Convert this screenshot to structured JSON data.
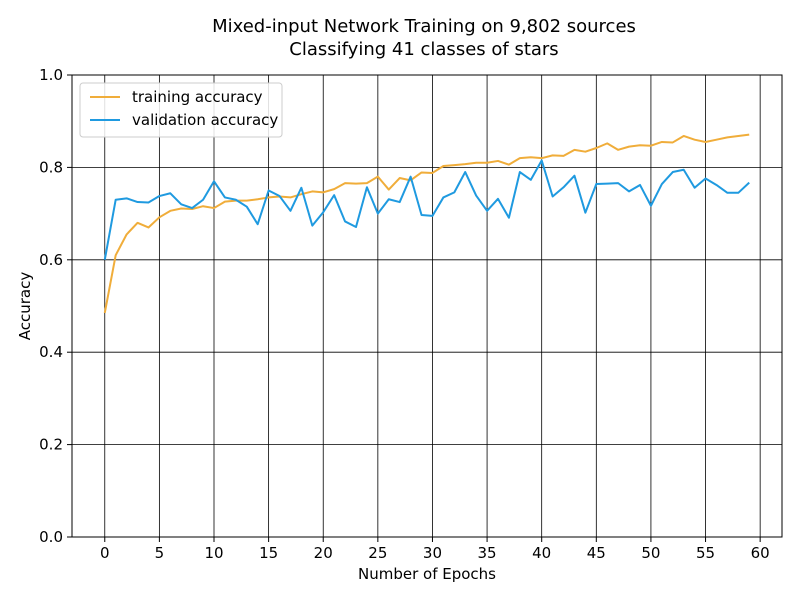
{
  "chart_data": {
    "type": "line",
    "title": "Mixed-input Network Training on 9,802 sources",
    "subtitle": "Classifying 41 classes of stars",
    "xlabel": "Number of Epochs",
    "ylabel": "Accuracy",
    "xlim": [
      -3,
      62
    ],
    "ylim": [
      0.0,
      1.0
    ],
    "xticks": [
      0,
      5,
      10,
      15,
      20,
      25,
      30,
      35,
      40,
      45,
      50,
      55,
      60
    ],
    "yticks": [
      0.0,
      0.2,
      0.4,
      0.6,
      0.8,
      1.0
    ],
    "xtick_labels": [
      "0",
      "5",
      "10",
      "15",
      "20",
      "25",
      "30",
      "35",
      "40",
      "45",
      "50",
      "55",
      "60"
    ],
    "ytick_labels": [
      "0.0",
      "0.2",
      "0.4",
      "0.6",
      "0.8",
      "1.0"
    ],
    "grid": true,
    "legend_position": "top-left",
    "x": [
      0,
      1,
      2,
      3,
      4,
      5,
      6,
      7,
      8,
      9,
      10,
      11,
      12,
      13,
      14,
      15,
      16,
      17,
      18,
      19,
      20,
      21,
      22,
      23,
      24,
      25,
      26,
      27,
      28,
      29,
      30,
      31,
      32,
      33,
      34,
      35,
      36,
      37,
      38,
      39,
      40,
      41,
      42,
      43,
      44,
      45,
      46,
      47,
      48,
      49,
      50,
      51,
      52,
      53,
      54,
      55,
      56,
      57,
      58,
      59
    ],
    "series": [
      {
        "name": "training accuracy",
        "color": "#f0ad3a",
        "values": [
          0.485,
          0.61,
          0.655,
          0.68,
          0.67,
          0.692,
          0.706,
          0.711,
          0.71,
          0.716,
          0.712,
          0.726,
          0.728,
          0.728,
          0.731,
          0.735,
          0.737,
          0.735,
          0.742,
          0.748,
          0.746,
          0.753,
          0.766,
          0.765,
          0.766,
          0.78,
          0.752,
          0.777,
          0.772,
          0.789,
          0.788,
          0.803,
          0.805,
          0.807,
          0.81,
          0.81,
          0.814,
          0.806,
          0.82,
          0.822,
          0.82,
          0.826,
          0.825,
          0.838,
          0.834,
          0.842,
          0.852,
          0.838,
          0.845,
          0.848,
          0.847,
          0.855,
          0.854,
          0.868,
          0.86,
          0.855,
          0.86,
          0.865,
          0.868,
          0.871
        ]
      },
      {
        "name": "validation accuracy",
        "color": "#1f9ae0",
        "values": [
          0.6,
          0.73,
          0.733,
          0.725,
          0.724,
          0.738,
          0.744,
          0.72,
          0.712,
          0.73,
          0.77,
          0.735,
          0.73,
          0.715,
          0.677,
          0.75,
          0.738,
          0.706,
          0.756,
          0.674,
          0.703,
          0.74,
          0.683,
          0.671,
          0.757,
          0.7,
          0.731,
          0.725,
          0.78,
          0.697,
          0.695,
          0.735,
          0.746,
          0.79,
          0.739,
          0.706,
          0.732,
          0.691,
          0.79,
          0.773,
          0.815,
          0.737,
          0.757,
          0.782,
          0.702,
          0.764,
          0.765,
          0.766,
          0.748,
          0.762,
          0.717,
          0.764,
          0.79,
          0.795,
          0.756,
          0.776,
          0.762,
          0.745,
          0.745,
          0.767
        ]
      }
    ]
  }
}
